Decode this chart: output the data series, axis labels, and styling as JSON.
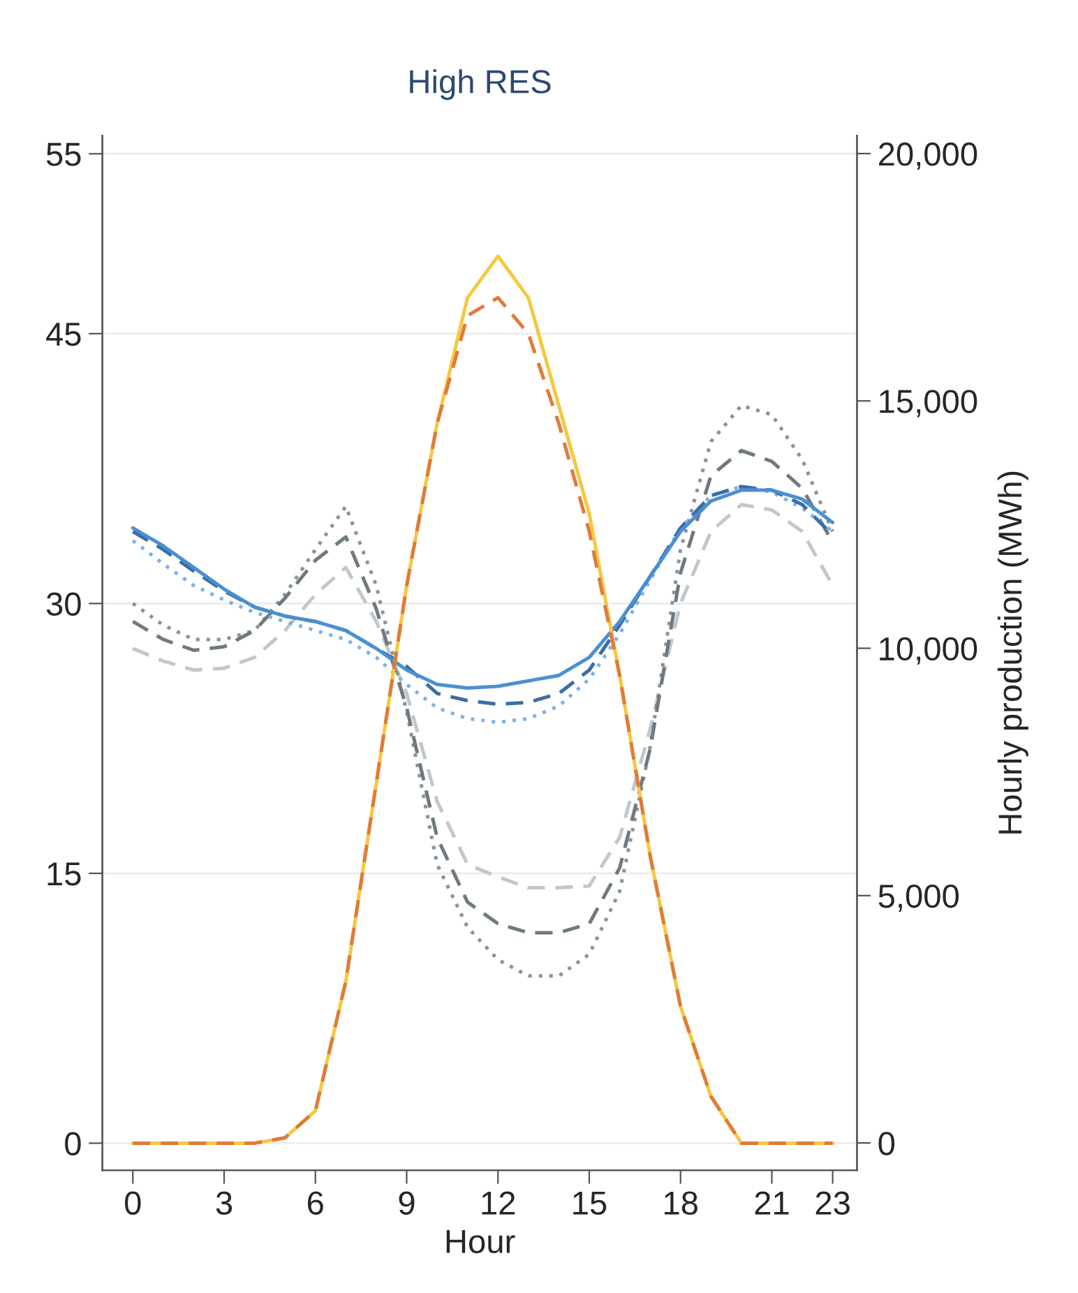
{
  "chart_data": {
    "type": "line",
    "title": "High RES",
    "xlabel": "Hour",
    "y2label": "Hourly production (MWh)",
    "x": [
      0,
      1,
      2,
      3,
      4,
      5,
      6,
      7,
      8,
      9,
      10,
      11,
      12,
      13,
      14,
      15,
      16,
      17,
      18,
      19,
      20,
      21,
      22,
      23
    ],
    "xlim": [
      -1,
      23.8
    ],
    "xticks": [
      0,
      3,
      6,
      9,
      12,
      15,
      18,
      21,
      23
    ],
    "ylim": [
      -1.5,
      56
    ],
    "yticks": [
      0,
      15,
      30,
      45,
      55
    ],
    "y2lim": [
      -550,
      20360
    ],
    "y2ticks": [
      {
        "value": 0,
        "label": "0"
      },
      {
        "value": 5000,
        "label": "5,000"
      },
      {
        "value": 10000,
        "label": "10,000"
      },
      {
        "value": 15000,
        "label": "15,000"
      },
      {
        "value": 20000,
        "label": "20,000"
      }
    ],
    "grid": "y",
    "series": [
      {
        "color": "#c0c8cc",
        "line_style": "dashed",
        "values": [
          27.5,
          26.8,
          26.3,
          26.4,
          27,
          28.5,
          30.5,
          32,
          29,
          25,
          19,
          15.5,
          14.8,
          14.2,
          14.2,
          14.3,
          17,
          23,
          30,
          34,
          35.5,
          35.2,
          34,
          31
        ]
      },
      {
        "color": "#8a9499",
        "line_style": "dotted",
        "values": [
          30,
          28.8,
          28,
          28,
          28.5,
          30.5,
          33,
          35.4,
          31,
          24,
          15.5,
          12,
          10.2,
          9.3,
          9.3,
          10.5,
          14,
          22,
          33,
          39,
          41,
          40.5,
          38,
          34
        ]
      },
      {
        "color": "#6e7a80",
        "line_style": "dashed",
        "values": [
          29,
          28,
          27.4,
          27.6,
          28.5,
          30.3,
          32.4,
          33.7,
          29.7,
          24.2,
          17,
          13.4,
          12.2,
          11.7,
          11.7,
          12.2,
          15.3,
          21.9,
          31.7,
          37.1,
          38.5,
          37.9,
          36.4,
          33.4
        ]
      },
      {
        "color": "#7fb2e5",
        "line_style": "dotted",
        "values": [
          33.5,
          32.2,
          31,
          30.2,
          29.5,
          29,
          28.5,
          28,
          27,
          25.5,
          24.2,
          23.6,
          23.4,
          23.6,
          24.3,
          25.8,
          28.3,
          31.3,
          34.2,
          36,
          36.5,
          36.2,
          35.3,
          34
        ]
      },
      {
        "color": "#3a6ea5",
        "line_style": "dashed",
        "values": [
          34,
          33,
          31.8,
          30.7,
          29.8,
          29.3,
          29,
          28.5,
          27.5,
          26.5,
          25,
          24.6,
          24.4,
          24.5,
          25,
          26.3,
          28.8,
          31.5,
          34.2,
          36,
          36.5,
          36.3,
          35.5,
          33.8
        ]
      },
      {
        "color": "#4a90d0",
        "line_style": "solid",
        "values": [
          34.2,
          33.2,
          32,
          30.8,
          29.8,
          29.3,
          29,
          28.5,
          27.5,
          26.3,
          25.5,
          25.3,
          25.4,
          25.7,
          26,
          27,
          29,
          31.5,
          34,
          35.7,
          36.3,
          36.3,
          35.8,
          34.5
        ]
      },
      {
        "color": "#f5c842",
        "line_style": "solid",
        "values": [
          0,
          0,
          0,
          0,
          0,
          0.3,
          1.8,
          9,
          20,
          31,
          40,
          47,
          49.3,
          47,
          41,
          35,
          26,
          16,
          7.6,
          2.6,
          0,
          0,
          0,
          0
        ]
      },
      {
        "color": "#e07b39",
        "line_style": "dashed",
        "values": [
          0,
          0,
          0,
          0,
          0,
          0.3,
          1.8,
          9,
          20,
          31,
          40,
          46,
          47,
          45,
          40,
          34,
          26,
          16,
          7.6,
          2.6,
          0,
          0,
          0,
          0
        ]
      }
    ]
  }
}
